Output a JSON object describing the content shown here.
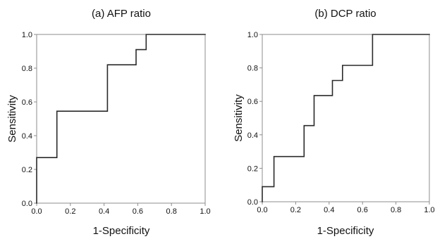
{
  "chart_data": [
    {
      "type": "line",
      "step": true,
      "title": "(a) AFP ratio",
      "xlabel": "1-Specificity",
      "ylabel": "Sensitivity",
      "xlim": [
        0,
        1
      ],
      "ylim": [
        0,
        1
      ],
      "grid": false,
      "xticks": [
        "0.0",
        "0.2",
        "0.4",
        "0.6",
        "0.8",
        "1.0"
      ],
      "yticks": [
        "0.0",
        "0.2",
        "0.4",
        "0.6",
        "0.8",
        "1.0"
      ],
      "series": [
        {
          "color": "#2a2a2a",
          "x": [
            0.0,
            0.0,
            0.12,
            0.12,
            0.42,
            0.42,
            0.59,
            0.59,
            0.65,
            0.65,
            1.0
          ],
          "y": [
            0.0,
            0.27,
            0.27,
            0.545,
            0.545,
            0.82,
            0.82,
            0.91,
            0.91,
            1.0,
            1.0
          ]
        }
      ]
    },
    {
      "type": "line",
      "step": true,
      "title": "(b) DCP ratio",
      "xlabel": "1-Specificity",
      "ylabel": "Sensitivity",
      "xlim": [
        0,
        1
      ],
      "ylim": [
        0,
        1
      ],
      "grid": false,
      "xticks": [
        "0.0",
        "0.2",
        "0.4",
        "0.6",
        "0.8",
        "1.0"
      ],
      "yticks": [
        "0.0",
        "0.2",
        "0.4",
        "0.6",
        "0.8",
        "1.0"
      ],
      "series": [
        {
          "color": "#2a2a2a",
          "x": [
            0.0,
            0.0,
            0.07,
            0.07,
            0.25,
            0.25,
            0.31,
            0.31,
            0.42,
            0.42,
            0.48,
            0.48,
            0.66,
            0.66,
            1.0
          ],
          "y": [
            0.0,
            0.09,
            0.09,
            0.27,
            0.27,
            0.455,
            0.455,
            0.635,
            0.635,
            0.725,
            0.725,
            0.815,
            0.815,
            1.0,
            1.0
          ]
        }
      ]
    }
  ]
}
